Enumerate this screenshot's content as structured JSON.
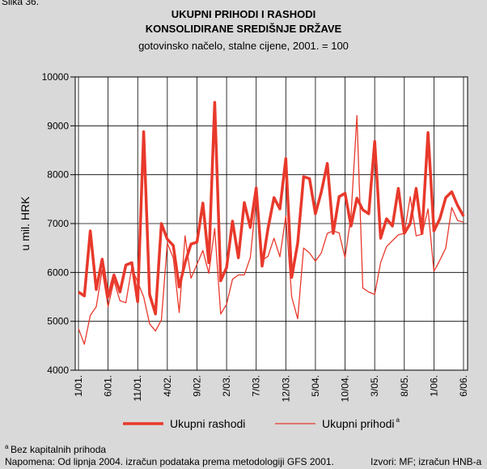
{
  "chart_data": {
    "type": "line",
    "figure_label": "Slika 36.",
    "title": [
      "UKUPNI PRIHODI I RASHODI",
      "KONSOLIDIRANE SREDIŠNJE DRŽAVE"
    ],
    "subtitle": "gotovinsko načelo, stalne cijene, 2001. = 100",
    "ylabel": "u mil. HRK",
    "ylim": [
      4000,
      10000
    ],
    "yticks": [
      4000,
      5000,
      6000,
      7000,
      8000,
      9000,
      10000
    ],
    "grid": true,
    "categories": [
      "1/01.",
      null,
      null,
      null,
      null,
      "6/01.",
      null,
      null,
      null,
      null,
      "11/01.",
      null,
      null,
      null,
      null,
      "4/02.",
      null,
      null,
      null,
      null,
      "9/02.",
      null,
      null,
      null,
      null,
      "2/03.",
      null,
      null,
      null,
      null,
      "7/03.",
      null,
      null,
      null,
      null,
      "12/03.",
      null,
      null,
      null,
      null,
      "5/04.",
      null,
      null,
      null,
      null,
      "10/04.",
      null,
      null,
      null,
      null,
      "3/05.",
      null,
      null,
      null,
      null,
      "8/05.",
      null,
      null,
      null,
      null,
      "1/06.",
      null,
      null,
      null,
      null,
      "6/06."
    ],
    "series": [
      {
        "name": "Ukupni rashodi",
        "color": "#e8392b",
        "width": 3.5,
        "values": [
          5600,
          5520,
          6850,
          5650,
          6270,
          5500,
          5950,
          5600,
          6150,
          6200,
          5400,
          8880,
          5550,
          5150,
          7000,
          6680,
          6550,
          5700,
          6200,
          6580,
          6620,
          7420,
          6200,
          9480,
          5830,
          6100,
          7050,
          6300,
          7430,
          6920,
          7730,
          6130,
          6900,
          7530,
          7300,
          8330,
          5900,
          6600,
          7960,
          7920,
          7200,
          7650,
          8230,
          6800,
          7550,
          7620,
          6950,
          7520,
          7280,
          7200,
          8680,
          6700,
          7100,
          6950,
          7720,
          6800,
          7000,
          7720,
          6800,
          8860,
          6850,
          7100,
          7530,
          7650,
          7370,
          7150
        ]
      },
      {
        "name": "Ukupni prihodi",
        "color": "#e8392b",
        "width": 1.3,
        "footnote_marker": "a",
        "values": [
          4850,
          4530,
          5120,
          5300,
          6050,
          5300,
          5830,
          5420,
          5380,
          6100,
          5800,
          5500,
          4950,
          4800,
          5030,
          6600,
          6300,
          5180,
          6750,
          5880,
          6170,
          6450,
          5980,
          6900,
          5150,
          5350,
          5860,
          5950,
          5950,
          6300,
          7500,
          6250,
          6330,
          6700,
          6320,
          7150,
          5500,
          5050,
          6500,
          6400,
          6230,
          6400,
          6800,
          6850,
          6810,
          6300,
          7150,
          9210,
          5680,
          5600,
          5550,
          6200,
          6530,
          6650,
          6770,
          6800,
          7550,
          6750,
          6780,
          7300,
          6020,
          6250,
          6500,
          7330,
          7060,
          7030
        ]
      }
    ],
    "footnote": {
      "marker": "a",
      "text": "Bez kapitalnih prihoda"
    },
    "note": "Napomena: Od lipnja 2004. izračun podataka prema metodologiji GFS 2001.",
    "source": "Izvori: MF; izračun HNB-a"
  }
}
